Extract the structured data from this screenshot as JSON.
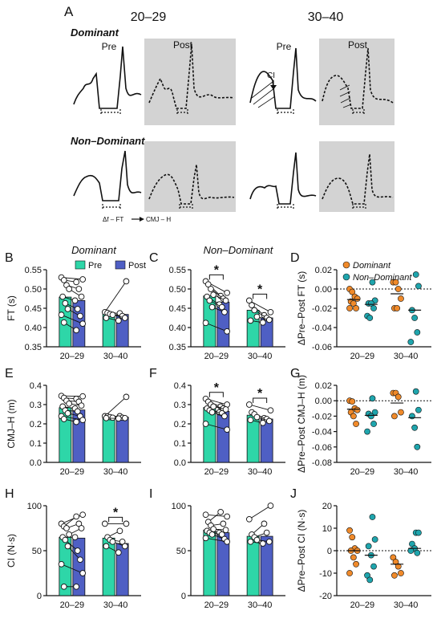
{
  "panel_a": {
    "letter": "A",
    "group_headers": [
      "20–29",
      "30–40"
    ],
    "row_labels": [
      "Dominant",
      "Non–Dominant"
    ],
    "pre_label": "Pre",
    "post_label": "Post",
    "ci_label": "CI",
    "delta_label": "Δf – FT",
    "cmj_label": "CMJ – H"
  },
  "legend": {
    "pre": "Pre",
    "post": "Post",
    "dominant": "Dominant",
    "non_dominant": "Non–Dominant"
  },
  "colors": {
    "pre": "#2ed6a8",
    "post": "#4f5fc4",
    "dominant": "#f08a2a",
    "non_dominant": "#1fa5ad",
    "shade": "#d3d3d3"
  },
  "chart_data": [
    {
      "panel": "B",
      "type": "bar",
      "title": "Dominant",
      "ylabel": "FT (s)",
      "categories": [
        "20–29",
        "30–40"
      ],
      "ylim": [
        0.35,
        0.55
      ],
      "yticks": [
        0.35,
        0.4,
        0.45,
        0.5,
        0.55
      ],
      "tick_decimals": 2,
      "pre": [
        0.479,
        0.438
      ],
      "post": [
        0.47,
        0.434
      ],
      "pairs": [
        [
          [
            0.53,
            0.525
          ],
          [
            0.523,
            0.518
          ],
          [
            0.51,
            0.5
          ],
          [
            0.5,
            0.48
          ],
          [
            0.48,
            0.47
          ],
          [
            0.463,
            0.448
          ],
          [
            0.448,
            0.43
          ],
          [
            0.433,
            0.41
          ],
          [
            0.413,
            0.393
          ]
        ],
        [
          [
            0.44,
            0.52
          ],
          [
            0.438,
            0.437
          ],
          [
            0.435,
            0.43
          ],
          [
            0.433,
            0.425
          ],
          [
            0.425,
            0.418
          ]
        ]
      ],
      "significance": [],
      "show_legend": true
    },
    {
      "panel": "C",
      "type": "bar",
      "title": "Non–Dominant",
      "ylabel": "",
      "categories": [
        "20–29",
        "30–40"
      ],
      "ylim": [
        0.35,
        0.55
      ],
      "yticks": [
        0.35,
        0.4,
        0.45,
        0.5,
        0.55
      ],
      "tick_decimals": 2,
      "pre": [
        0.482,
        0.445
      ],
      "post": [
        0.466,
        0.425
      ],
      "pairs": [
        [
          [
            0.52,
            0.49
          ],
          [
            0.512,
            0.482
          ],
          [
            0.5,
            0.475
          ],
          [
            0.485,
            0.47
          ],
          [
            0.48,
            0.46
          ],
          [
            0.47,
            0.453
          ],
          [
            0.453,
            0.44
          ],
          [
            0.412,
            0.39
          ]
        ],
        [
          [
            0.47,
            0.44
          ],
          [
            0.458,
            0.432
          ],
          [
            0.445,
            0.425
          ],
          [
            0.428,
            0.42
          ],
          [
            0.418,
            0.413
          ]
        ]
      ],
      "significance": [
        0,
        1
      ],
      "show_legend": false
    },
    {
      "panel": "D",
      "type": "scatter",
      "ylabel": "ΔPre–Post FT (s)",
      "categories": [
        "20–29",
        "30–40"
      ],
      "ylim": [
        -0.06,
        0.02
      ],
      "yticks": [
        -0.06,
        -0.04,
        -0.02,
        0.0,
        0.02
      ],
      "tick_decimals": 2,
      "dominant": [
        [
          0.0,
          -0.003,
          -0.008,
          -0.01,
          -0.013,
          -0.015,
          -0.02,
          -0.02
        ],
        [
          0.007,
          0.007,
          0.0,
          -0.01,
          -0.02,
          -0.02
        ]
      ],
      "non_dominant": [
        [
          0.007,
          -0.012,
          -0.015,
          -0.015,
          -0.02,
          -0.028,
          -0.03
        ],
        [
          0.015,
          0.003,
          -0.022,
          -0.03,
          -0.045,
          -0.055
        ]
      ],
      "means_dominant": [
        -0.011,
        -0.005
      ],
      "means_non_dominant": [
        -0.016,
        -0.022
      ],
      "show_legend": true
    },
    {
      "panel": "E",
      "type": "bar",
      "ylabel": "CMJ–H (m)",
      "categories": [
        "20–29",
        "30–40"
      ],
      "ylim": [
        0.0,
        0.4
      ],
      "yticks": [
        0.0,
        0.1,
        0.2,
        0.3,
        0.4
      ],
      "tick_decimals": 1,
      "pre": [
        0.284,
        0.238
      ],
      "post": [
        0.272,
        0.235
      ],
      "pairs": [
        [
          [
            0.345,
            0.343
          ],
          [
            0.335,
            0.33
          ],
          [
            0.32,
            0.315
          ],
          [
            0.305,
            0.295
          ],
          [
            0.29,
            0.28
          ],
          [
            0.27,
            0.265
          ],
          [
            0.255,
            0.24
          ],
          [
            0.24,
            0.22
          ],
          [
            0.225,
            0.21
          ]
        ],
        [
          [
            0.24,
            0.34
          ],
          [
            0.238,
            0.24
          ],
          [
            0.235,
            0.232
          ],
          [
            0.232,
            0.23
          ],
          [
            0.23,
            0.228
          ]
        ]
      ],
      "significance": [],
      "show_legend": false
    },
    {
      "panel": "F",
      "type": "bar",
      "ylabel": "",
      "categories": [
        "20–29",
        "30–40"
      ],
      "ylim": [
        0.0,
        0.4
      ],
      "yticks": [
        0.0,
        0.1,
        0.2,
        0.3,
        0.4
      ],
      "tick_decimals": 1,
      "pre": [
        0.285,
        0.245
      ],
      "post": [
        0.265,
        0.225
      ],
      "pairs": [
        [
          [
            0.33,
            0.3
          ],
          [
            0.315,
            0.29
          ],
          [
            0.3,
            0.28
          ],
          [
            0.29,
            0.275
          ],
          [
            0.28,
            0.26
          ],
          [
            0.27,
            0.255
          ],
          [
            0.26,
            0.24
          ],
          [
            0.2,
            0.17
          ]
        ],
        [
          [
            0.3,
            0.27
          ],
          [
            0.26,
            0.23
          ],
          [
            0.25,
            0.225
          ],
          [
            0.235,
            0.215
          ],
          [
            0.22,
            0.205
          ]
        ]
      ],
      "significance": [
        0,
        1
      ],
      "show_legend": false
    },
    {
      "panel": "G",
      "type": "scatter",
      "ylabel": "ΔPre–Post CMJ–H (m)",
      "categories": [
        "20–29",
        "30–40"
      ],
      "ylim": [
        -0.08,
        0.02
      ],
      "yticks": [
        -0.08,
        -0.06,
        -0.04,
        -0.02,
        0.0,
        0.02
      ],
      "tick_decimals": 2,
      "dominant": [
        [
          0.0,
          -0.001,
          -0.01,
          -0.012,
          -0.015,
          -0.02,
          -0.03
        ],
        [
          0.01,
          0.01,
          0.005,
          -0.015,
          -0.02
        ]
      ],
      "non_dominant": [
        [
          0.003,
          -0.015,
          -0.017,
          -0.02,
          -0.03,
          -0.04
        ],
        [
          0.012,
          -0.012,
          -0.02,
          -0.035,
          -0.06
        ]
      ],
      "means_dominant": [
        -0.011,
        -0.003
      ],
      "means_non_dominant": [
        -0.019,
        -0.022
      ],
      "show_legend": false
    },
    {
      "panel": "H",
      "type": "bar",
      "ylabel": "CI (N·s)",
      "categories": [
        "20–29",
        "30–40"
      ],
      "ylim": [
        0,
        100
      ],
      "yticks": [
        0,
        50,
        100
      ],
      "tick_decimals": 0,
      "pre": [
        65,
        64
      ],
      "post": [
        64,
        58
      ],
      "pairs": [
        [
          [
            80,
            90
          ],
          [
            77,
            88
          ],
          [
            75,
            80
          ],
          [
            68,
            75
          ],
          [
            65,
            65
          ],
          [
            62,
            50
          ],
          [
            55,
            40
          ],
          [
            35,
            25
          ],
          [
            10,
            10
          ]
        ],
        [
          [
            80,
            80
          ],
          [
            65,
            72
          ],
          [
            62,
            60
          ],
          [
            60,
            55
          ],
          [
            55,
            48
          ]
        ]
      ],
      "significance": [
        1
      ],
      "show_legend": false
    },
    {
      "panel": "I",
      "type": "bar",
      "ylabel": "",
      "categories": [
        "20–29",
        "30–40"
      ],
      "ylim": [
        0,
        100
      ],
      "yticks": [
        0,
        50,
        100
      ],
      "tick_decimals": 0,
      "pre": [
        73,
        66
      ],
      "post": [
        70,
        66
      ],
      "pairs": [
        [
          [
            90,
            88
          ],
          [
            82,
            93
          ],
          [
            78,
            80
          ],
          [
            74,
            73
          ],
          [
            72,
            70
          ],
          [
            70,
            68
          ],
          [
            68,
            63
          ],
          [
            64,
            60
          ]
        ],
        [
          [
            85,
            100
          ],
          [
            68,
            80
          ],
          [
            65,
            70
          ],
          [
            62,
            60
          ],
          [
            60,
            58
          ]
        ]
      ],
      "significance": [],
      "show_legend": false
    },
    {
      "panel": "J",
      "type": "scatter",
      "ylabel": "ΔPre–Post CI (N·s)",
      "categories": [
        "20–29",
        "30–40"
      ],
      "ylim": [
        -20,
        20
      ],
      "yticks": [
        -20,
        -10,
        0,
        10,
        20
      ],
      "tick_decimals": 0,
      "dominant": [
        [
          9,
          6,
          1,
          0,
          0,
          -3,
          -6,
          -10
        ],
        [
          -3,
          -5,
          -7,
          -10,
          -11
        ]
      ],
      "non_dominant": [
        [
          15,
          5,
          2,
          -2,
          -7,
          -11,
          -13
        ],
        [
          8,
          8,
          3,
          1,
          -1,
          0
        ]
      ],
      "means_dominant": [
        0,
        -6
      ],
      "means_non_dominant": [
        -2,
        1
      ],
      "show_legend": false
    }
  ]
}
